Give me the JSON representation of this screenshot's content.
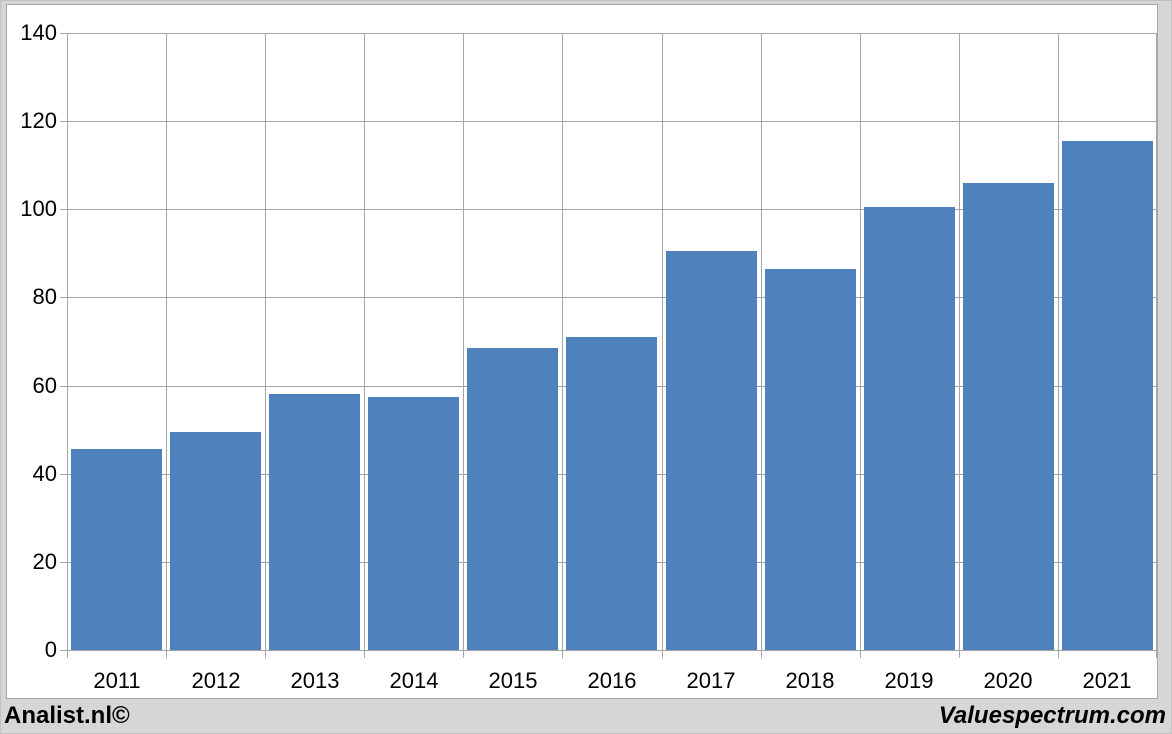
{
  "chart_data": {
    "type": "bar",
    "categories": [
      "2011",
      "2012",
      "2013",
      "2014",
      "2015",
      "2016",
      "2017",
      "2018",
      "2019",
      "2020",
      "2021"
    ],
    "values": [
      45.5,
      49.5,
      58,
      57.5,
      68.5,
      71,
      90.5,
      86.5,
      100.5,
      106,
      115.5
    ],
    "title": "",
    "xlabel": "",
    "ylabel": "",
    "ylim": [
      0,
      140
    ],
    "y_ticks": [
      0,
      20,
      40,
      60,
      80,
      100,
      120,
      140
    ],
    "grid": true,
    "legend": false,
    "colors": {
      "bar": "#4F81BD",
      "gridline": "#A6A6A6",
      "plot_background": "#FFFFFF",
      "outer_background": "#D6D6D6",
      "axis_text": "#000000"
    }
  },
  "footer": {
    "left_text": "Analist.nl©",
    "right_text": "Valuespectrum.com"
  }
}
